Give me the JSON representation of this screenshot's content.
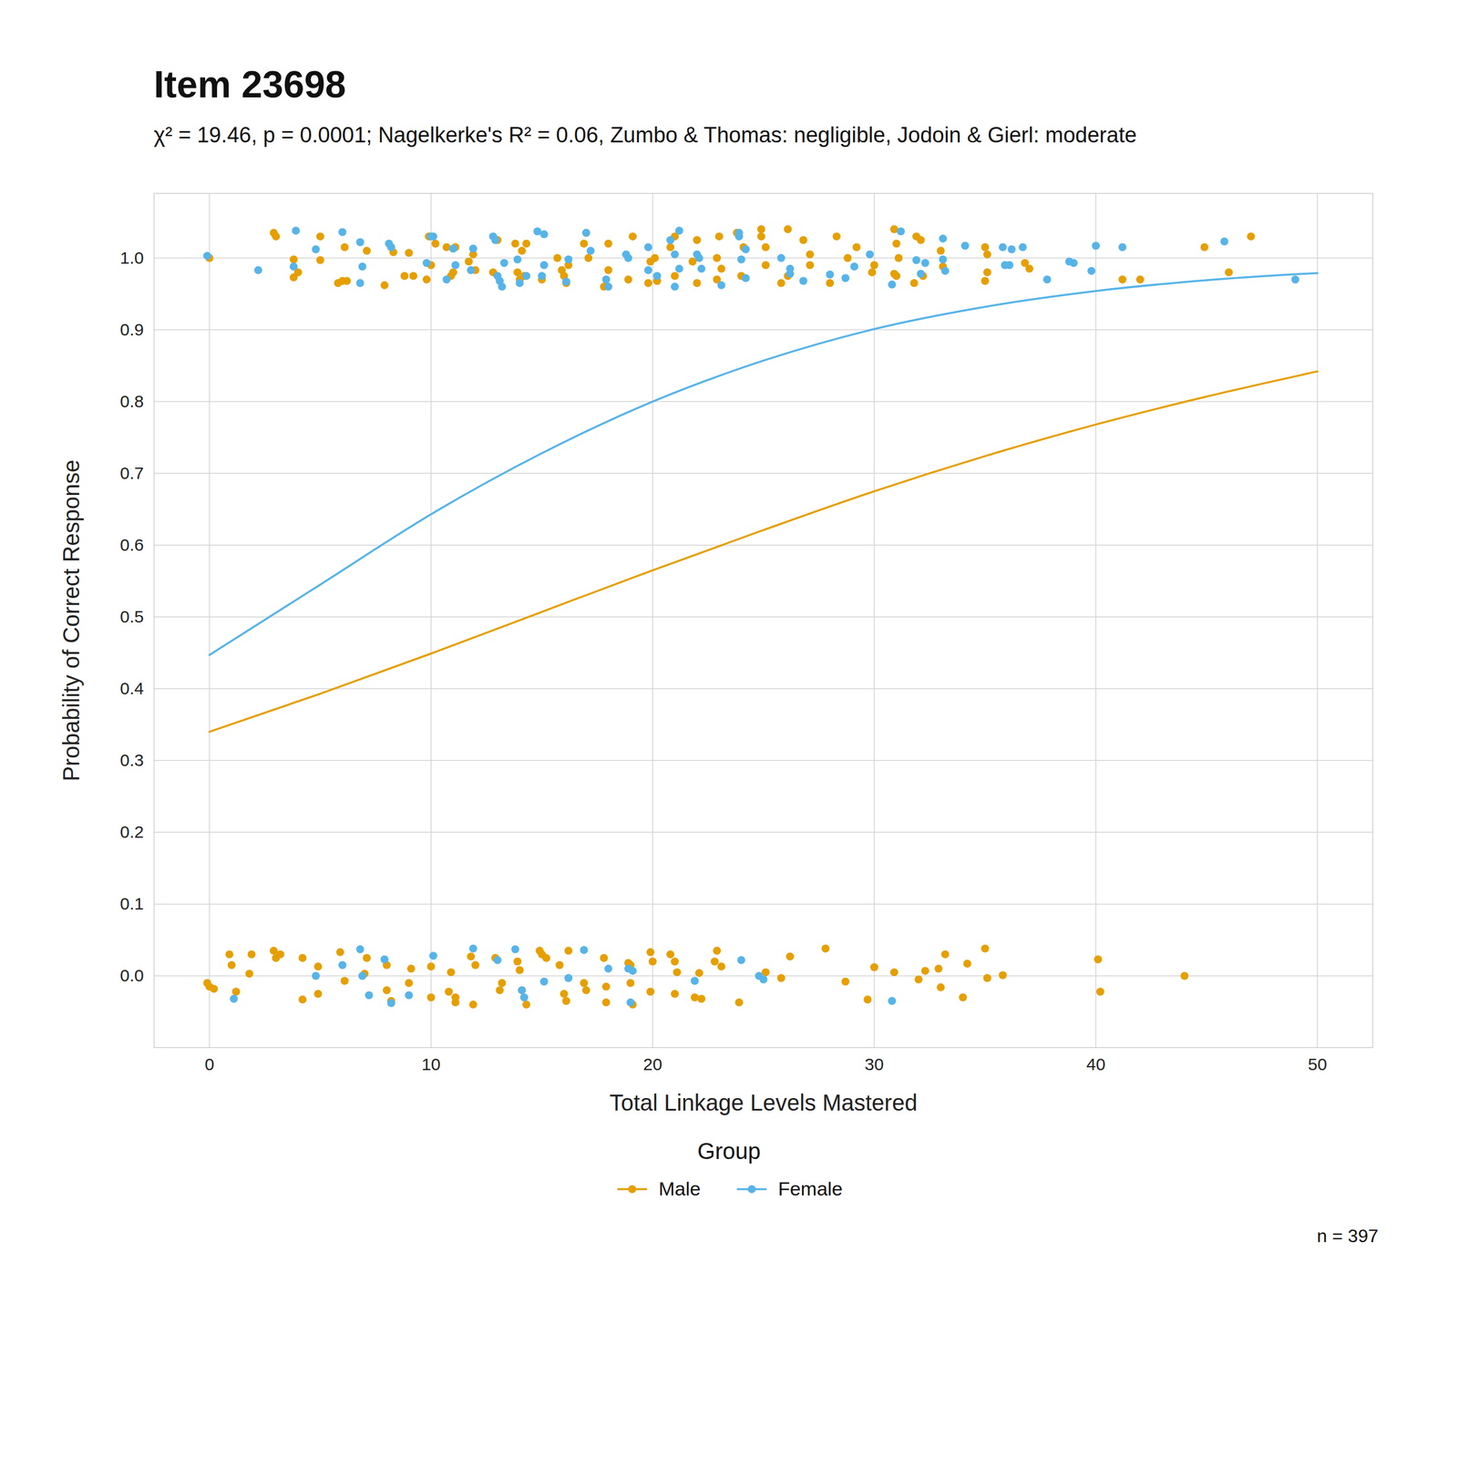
{
  "chart_data": {
    "type": "scatter",
    "title": "Item 23698",
    "subtitle": "χ² = 19.46, p = 0.0001; Nagelkerke's R² = 0.06, Zumbo & Thomas: negligible, Jodoin & Gierl: moderate",
    "x_label": "Total Linkage Levels Mastered",
    "y_label": "Probability of Correct Response",
    "legend_title": "Group",
    "caption": "n = 397",
    "legend": "bottom",
    "grid": true,
    "xlim": [
      -2.5,
      52.5
    ],
    "ylim": [
      -0.1,
      1.09
    ],
    "xticks": [
      0,
      10,
      20,
      30,
      40,
      50
    ],
    "yticks": [
      {
        "value": 0,
        "label": "0.0"
      },
      0.1,
      0.2,
      0.3,
      0.4,
      0.5,
      0.6,
      0.7,
      0.8,
      0.9,
      {
        "value": 1,
        "label": "1.0"
      }
    ],
    "x": [
      0,
      5,
      10,
      15,
      20,
      25,
      30,
      35,
      40,
      45,
      50
    ],
    "series": [
      {
        "name": "Male",
        "color": "#E69F00",
        "values": [
          0.34,
          0.393,
          0.449,
          0.507,
          0.565,
          0.621,
          0.675,
          0.724,
          0.768,
          0.807,
          0.842
        ],
        "points": {
          "x": [
            0,
            2.9,
            3,
            3.8,
            3.8,
            4,
            5,
            5,
            5.8,
            6,
            6.1,
            6.2,
            7.1,
            7.9,
            8.3,
            8.8,
            9,
            9.2,
            9.8,
            9.9,
            10,
            10.2,
            10.7,
            10.9,
            11,
            11.1,
            11.7,
            11.9,
            12,
            12.8,
            13,
            13.8,
            13.9,
            14,
            14.1,
            14.2,
            14.3,
            15,
            15.7,
            15.9,
            16,
            16.1,
            16.2,
            16.9,
            17,
            17.1,
            17.8,
            18,
            18,
            18.9,
            19.1,
            19.8,
            19.9,
            20.1,
            20.2,
            20.8,
            21,
            21,
            21.8,
            22,
            22,
            22.9,
            22.9,
            23,
            23.1,
            23.8,
            24,
            24.1,
            24.9,
            24.9,
            25.1,
            25.1,
            25.8,
            26.1,
            26.1,
            26.8,
            27.1,
            27.1,
            28,
            28.3,
            28.8,
            29.2,
            29.9,
            30,
            30.9,
            30.9,
            31,
            31,
            31.1,
            31.8,
            31.9,
            32.1,
            32.2,
            33,
            33.1,
            35,
            35,
            35.1,
            35.1,
            36.8,
            37,
            41.2,
            42,
            44.9,
            46,
            47,
            -0.1,
            0,
            0.2,
            0.9,
            1,
            1.2,
            1.8,
            1.9,
            2.9,
            3,
            3.2,
            4.2,
            4.2,
            4.9,
            4.9,
            5.9,
            6.1,
            7,
            7.1,
            8,
            8,
            8.2,
            9,
            9.1,
            10,
            10,
            10.8,
            10.9,
            11.1,
            11.1,
            11.8,
            11.9,
            12,
            12.9,
            13.2,
            13.1,
            13.9,
            14,
            14.1,
            14.3,
            14.9,
            15,
            15.2,
            15.8,
            16,
            16.1,
            16.2,
            16.9,
            17,
            17.8,
            17.9,
            17.9,
            18.9,
            19,
            19,
            19.1,
            19.9,
            19.9,
            20,
            20.8,
            21,
            21,
            21.1,
            21.9,
            22.1,
            22.2,
            22.9,
            22.8,
            23.1,
            23.9,
            25.1,
            25.8,
            26.2,
            27.8,
            28.7,
            29.7,
            30,
            30.9,
            32,
            32.3,
            32.9,
            33,
            33.2,
            34,
            34.2,
            35,
            35.1,
            35.8,
            40.1,
            40.2,
            44
          ],
          "y": [
            1.0,
            1.035,
            1.03,
            0.998,
            0.973,
            0.98,
            0.997,
            1.03,
            0.965,
            0.968,
            1.015,
            0.968,
            1.01,
            0.962,
            1.008,
            0.975,
            1.007,
            0.975,
            0.97,
            1.03,
            0.99,
            1.02,
            1.015,
            0.975,
            0.98,
            1.015,
            0.995,
            1.005,
            0.983,
            0.98,
            1.025,
            1.02,
            0.98,
            0.97,
            1.01,
            0.975,
            1.02,
            0.97,
            1.0,
            0.983,
            0.975,
            0.965,
            0.99,
            1.02,
            1.035,
            1.0,
            0.96,
            0.983,
            1.02,
            0.97,
            1.03,
            0.965,
            0.995,
            1.0,
            0.968,
            1.015,
            0.975,
            1.03,
            0.995,
            1.025,
            0.965,
            0.97,
            1.0,
            1.03,
            0.985,
            1.035,
            0.975,
            1.015,
            1.04,
            1.03,
            0.99,
            1.015,
            0.965,
            1.04,
            0.975,
            1.025,
            1.005,
            0.99,
            0.965,
            1.03,
            1.0,
            1.015,
            0.98,
            0.99,
            1.04,
            0.978,
            0.975,
            1.02,
            1.0,
            0.965,
            1.03,
            1.025,
            0.975,
            1.01,
            0.988,
            1.015,
            0.968,
            1.005,
            0.98,
            0.993,
            0.985,
            0.97,
            0.97,
            1.015,
            0.98,
            1.03,
            -0.01,
            -0.015,
            -0.018,
            0.03,
            0.015,
            -0.022,
            0.003,
            0.03,
            0.035,
            0.025,
            0.03,
            0.025,
            -0.033,
            0.013,
            -0.025,
            0.033,
            -0.007,
            0.003,
            0.025,
            0.015,
            -0.02,
            -0.035,
            -0.01,
            0.01,
            0.013,
            -0.03,
            -0.022,
            0.005,
            -0.03,
            -0.037,
            0.027,
            -0.04,
            0.015,
            0.025,
            -0.01,
            -0.02,
            0.02,
            0.008,
            -0.02,
            -0.04,
            0.035,
            0.03,
            0.025,
            0.015,
            -0.025,
            -0.035,
            0.035,
            -0.01,
            -0.02,
            0.025,
            -0.015,
            -0.037,
            0.018,
            -0.01,
            0.015,
            -0.04,
            0.033,
            -0.022,
            0.02,
            0.03,
            0.02,
            -0.025,
            0.005,
            -0.03,
            0.004,
            -0.032,
            0.035,
            0.02,
            0.013,
            -0.037,
            0.005,
            -0.003,
            0.027,
            0.038,
            -0.008,
            -0.033,
            0.012,
            0.005,
            -0.005,
            0.007,
            0.01,
            -0.016,
            0.03,
            -0.03,
            0.017,
            0.038,
            -0.003,
            0.001,
            0.023,
            -0.022,
            0.0
          ]
        }
      },
      {
        "name": "Female",
        "color": "#56B4E9",
        "values": [
          0.447,
          0.545,
          0.643,
          0.728,
          0.8,
          0.857,
          0.901,
          0.932,
          0.954,
          0.969,
          0.979
        ],
        "points": {
          "x": [
            -0.1,
            2.2,
            3.8,
            3.9,
            4.8,
            6,
            6.8,
            6.9,
            6.8,
            8.1,
            8.2,
            9.8,
            10,
            10.1,
            10.7,
            11,
            11.1,
            11.8,
            11.9,
            12.8,
            12.9,
            13,
            13.1,
            13.2,
            13.3,
            13.9,
            14,
            14.3,
            14.8,
            15,
            15.1,
            15.1,
            16.1,
            16.2,
            17,
            17.2,
            17.9,
            18,
            18.9,
            18.8,
            19.8,
            19.8,
            20.2,
            20.8,
            21,
            21,
            21.2,
            21.2,
            22,
            22.1,
            22.2,
            23.1,
            23.9,
            23.9,
            24,
            24.2,
            24.2,
            25.8,
            26.2,
            26.2,
            26.8,
            28,
            28.7,
            29.1,
            29.8,
            30.8,
            31.2,
            31.9,
            32.1,
            32.3,
            33.1,
            33.1,
            33.2,
            34.1,
            35.8,
            35.9,
            36.2,
            36.1,
            36.7,
            37.8,
            38.8,
            39,
            39.8,
            40,
            41.2,
            45.8,
            49,
            1.1,
            4.8,
            6,
            6.8,
            6.9,
            7.2,
            7.9,
            8.2,
            9,
            10.1,
            11.9,
            13,
            13.8,
            14.1,
            14.2,
            15.1,
            16.2,
            16.9,
            18,
            18.9,
            19,
            19.1,
            21.9,
            24,
            24.8,
            25,
            30.8
          ],
          "y": [
            1.003,
            0.983,
            0.988,
            1.038,
            1.012,
            1.036,
            1.022,
            0.988,
            0.965,
            1.02,
            1.015,
            0.993,
            1.03,
            1.03,
            0.97,
            1.013,
            0.99,
            0.983,
            1.013,
            1.03,
            1.025,
            0.975,
            0.968,
            0.96,
            0.993,
            0.998,
            0.965,
            0.975,
            1.037,
            0.975,
            0.99,
            1.033,
            0.967,
            0.998,
            1.035,
            1.01,
            0.97,
            0.96,
            1.0,
            1.005,
            0.983,
            1.015,
            0.975,
            1.025,
            1.005,
            0.96,
            0.985,
            1.038,
            1.005,
            1.0,
            0.985,
            0.962,
            1.035,
            1.03,
            0.998,
            1.012,
            0.972,
            1.0,
            0.985,
            0.978,
            0.968,
            0.977,
            0.972,
            0.988,
            1.005,
            0.963,
            1.037,
            0.997,
            0.978,
            0.993,
            1.027,
            0.998,
            0.982,
            1.017,
            1.015,
            0.99,
            1.012,
            0.99,
            1.015,
            0.97,
            0.995,
            0.993,
            0.982,
            1.017,
            1.015,
            1.023,
            0.97,
            -0.032,
            0.0,
            0.015,
            0.037,
            0.0,
            -0.027,
            0.023,
            -0.038,
            -0.027,
            0.028,
            0.038,
            0.022,
            0.037,
            -0.02,
            -0.03,
            -0.008,
            -0.003,
            0.036,
            0.01,
            0.01,
            -0.037,
            0.007,
            -0.007,
            0.022,
            0.0,
            -0.005,
            -0.035
          ]
        }
      }
    ]
  }
}
